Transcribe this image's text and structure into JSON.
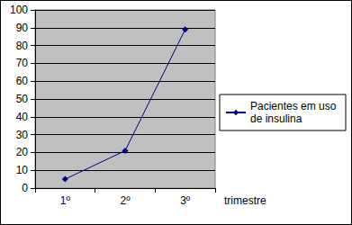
{
  "chart_data": {
    "type": "line",
    "categories": [
      "1º",
      "2º",
      "3º"
    ],
    "series": [
      {
        "name": "Pacientes em uso de insulina",
        "color": "#000080",
        "values": [
          5,
          21,
          89
        ],
        "marker": "diamond"
      }
    ],
    "x_label": "trimestre",
    "ylim": [
      0,
      100
    ],
    "yticks": [
      0,
      10,
      20,
      30,
      40,
      50,
      60,
      70,
      80,
      90,
      100
    ],
    "grid": true,
    "legend": "right"
  }
}
